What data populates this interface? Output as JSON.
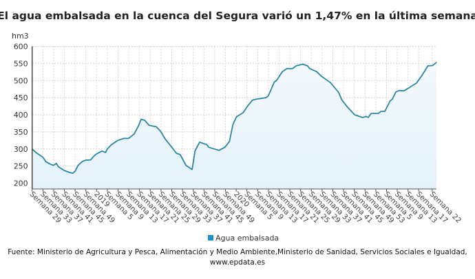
{
  "chart_data": {
    "type": "area",
    "title": "El agua embalsada en la cuenca del Segura varió un 1,47% en la última semana",
    "ylabel": "hm3",
    "xlabel": "",
    "ylim": [
      183,
      600
    ],
    "yticks": [
      200,
      250,
      300,
      350,
      400,
      450,
      500,
      550,
      600
    ],
    "xlim": [
      0,
      150.6
    ],
    "grid": true,
    "x_unit": "weeks since Semana 29 (2018)",
    "categories": [
      "Semana 29",
      "Semana 33",
      "Semana 37",
      "Semana 41",
      "Semana 45",
      "Semana 49",
      "2019",
      "Semana 5",
      "Semana 9",
      "Semana 13",
      "Semana 17",
      "Semana 21",
      "Semana 25",
      "Semana 29",
      "Semana 33",
      "Semana 37",
      "Semana 41",
      "Semana 45",
      "Semana 49",
      "2020",
      "Semana 5",
      "Semana 9",
      "Semana 13",
      "Semana 17",
      "Semana 21",
      "Semana 25",
      "Semana 29",
      "Semana 33",
      "Semana 37",
      "Semana 41",
      "Semana 45",
      "Semana 49",
      "Semana 53",
      "Semana 5",
      "Semana 9",
      "Semana 13",
      "Semana 17",
      "Semana 22"
    ],
    "category_positions": [
      0,
      4,
      8,
      12,
      16,
      20,
      24,
      28,
      32,
      36,
      40,
      44,
      48,
      52,
      56,
      60,
      64,
      68,
      72,
      76,
      80,
      84,
      88,
      92,
      96,
      100,
      104,
      108,
      112,
      116,
      120,
      124,
      128,
      132,
      136,
      140,
      144,
      149
    ],
    "series": [
      {
        "name": "Agua embalsada",
        "color": "#2a86a3",
        "x": [
          0,
          1.7,
          4,
          5.1,
          6.4,
          7.9,
          9,
          9.8,
          12,
          13.7,
          15.1,
          16,
          17.1,
          18.8,
          19.9,
          21.8,
          23.1,
          23.9,
          26,
          27.3,
          28,
          29.5,
          31.9,
          34.2,
          35.9,
          38,
          39.7,
          40.6,
          41.9,
          43.6,
          46.2,
          47.8,
          49.6,
          51.3,
          53.8,
          55.1,
          57.3,
          59.6,
          60.7,
          62.4,
          64.1,
          65,
          65.8,
          69.6,
          71.8,
          73.5,
          74.8,
          76.1,
          78.6,
          80.3,
          82.1,
          83.7,
          87.2,
          88,
          90.2,
          91,
          93.2,
          94.9,
          97,
          98.3,
          100.8,
          102.6,
          103.4,
          106,
          107.7,
          111.1,
          112.4,
          114.1,
          115.4,
          117.5,
          120.1,
          123.1,
          124.4,
          125.2,
          126.3,
          129,
          129.9,
          131.4,
          133.3,
          134.2,
          135.5,
          136.8,
          138.5,
          140.2,
          143.2,
          145.3,
          147.4,
          149.1,
          150.6
        ],
        "values": [
          300,
          288,
          276,
          263,
          257,
          252,
          258,
          248,
          237,
          232,
          229,
          235,
          252,
          264,
          267,
          268,
          280,
          285,
          294,
          290,
          300,
          312,
          325,
          331,
          331,
          344,
          369,
          387,
          384,
          369,
          365,
          352,
          329,
          312,
          287,
          284,
          252,
          240,
          295,
          320,
          315,
          313,
          305,
          296,
          305,
          322,
          372,
          394,
          406,
          426,
          443,
          446,
          450,
          456,
          496,
          500,
          526,
          535,
          535,
          543,
          548,
          543,
          535,
          526,
          513,
          494,
          482,
          466,
          443,
          422,
          400,
          392,
          395,
          392,
          404,
          404,
          410,
          410,
          440,
          446,
          467,
          471,
          470,
          478,
          493,
          516,
          543,
          544,
          553
        ]
      }
    ],
    "legend": {
      "position": "bottom-center",
      "entries": [
        "Agua embalsada"
      ],
      "color": "#1a8fc9"
    }
  },
  "footer": {
    "source": "Fuente: Ministerio de Agricultura y Pesca, Alimentación y Medio Ambiente,Ministerio de Sanidad, Servicios Sociales e Igualdad,",
    "site": "www.epdata.es"
  }
}
